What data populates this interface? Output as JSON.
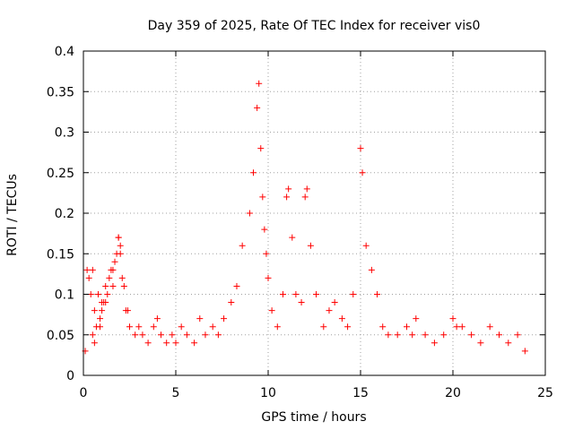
{
  "chart_data": {
    "type": "scatter",
    "title": "Day 359 of 2025, Rate Of TEC Index for receiver vis0",
    "xlabel": "GPS time / hours",
    "ylabel": "ROTI / TECUs",
    "xlim": [
      0,
      25
    ],
    "ylim": [
      0,
      0.4
    ],
    "xticks": [
      "0",
      "5",
      "10",
      "15",
      "20",
      "25"
    ],
    "yticks": [
      "0",
      "0.05",
      "0.1",
      "0.15",
      "0.2",
      "0.25",
      "0.3",
      "0.35",
      "0.4"
    ],
    "grid": true,
    "marker": "+",
    "color": "#ff0000",
    "series": [
      {
        "x": [
          0.1,
          0.3,
          0.5,
          0.8,
          1.0,
          1.2,
          1.5,
          1.7,
          1.9,
          2.0,
          2.1,
          2.3,
          2.5,
          2.8,
          3.0,
          3.2,
          3.5,
          3.8,
          4.0,
          4.2,
          4.5,
          4.8,
          5.0,
          5.3,
          5.6,
          6.0,
          6.3,
          6.6,
          7.0,
          7.3,
          7.6,
          8.0,
          8.3,
          8.6,
          9.0,
          9.2,
          9.4,
          9.5,
          9.6,
          9.7,
          9.8,
          9.9,
          10.0,
          10.2,
          10.5,
          10.8,
          11.0,
          11.1,
          11.3,
          11.5,
          11.8,
          12.0,
          12.1,
          12.3,
          12.6,
          13.0,
          13.3,
          13.6,
          14.0,
          14.3,
          14.6,
          15.0,
          15.1,
          15.3,
          15.6,
          15.9,
          16.2,
          16.5,
          17.0,
          17.5,
          17.8,
          18.0,
          18.5,
          19.0,
          19.5,
          20.0,
          20.2,
          20.5,
          21.0,
          21.5,
          22.0,
          22.5,
          23.0,
          23.5,
          23.9,
          0.2,
          0.4,
          0.6,
          0.9,
          1.1,
          1.4,
          1.6,
          1.8,
          2.2,
          2.4,
          0.5,
          0.7,
          1.3,
          1.6,
          1.9,
          2.0,
          1.0,
          0.9,
          1.2,
          0.6
        ],
        "y": [
          0.03,
          0.12,
          0.13,
          0.1,
          0.09,
          0.11,
          0.13,
          0.14,
          0.17,
          0.16,
          0.12,
          0.08,
          0.06,
          0.05,
          0.06,
          0.05,
          0.04,
          0.06,
          0.07,
          0.05,
          0.04,
          0.05,
          0.04,
          0.06,
          0.05,
          0.04,
          0.07,
          0.05,
          0.06,
          0.05,
          0.07,
          0.09,
          0.11,
          0.16,
          0.2,
          0.25,
          0.33,
          0.36,
          0.28,
          0.22,
          0.18,
          0.15,
          0.12,
          0.08,
          0.06,
          0.1,
          0.22,
          0.23,
          0.17,
          0.1,
          0.09,
          0.22,
          0.23,
          0.16,
          0.1,
          0.06,
          0.08,
          0.09,
          0.07,
          0.06,
          0.1,
          0.28,
          0.25,
          0.16,
          0.13,
          0.1,
          0.06,
          0.05,
          0.05,
          0.06,
          0.05,
          0.07,
          0.05,
          0.04,
          0.05,
          0.07,
          0.06,
          0.06,
          0.05,
          0.04,
          0.06,
          0.05,
          0.04,
          0.05,
          0.03,
          0.13,
          0.1,
          0.08,
          0.07,
          0.09,
          0.12,
          0.13,
          0.15,
          0.11,
          0.08,
          0.05,
          0.06,
          0.1,
          0.11,
          0.17,
          0.15,
          0.08,
          0.06,
          0.09,
          0.04
        ]
      }
    ]
  }
}
